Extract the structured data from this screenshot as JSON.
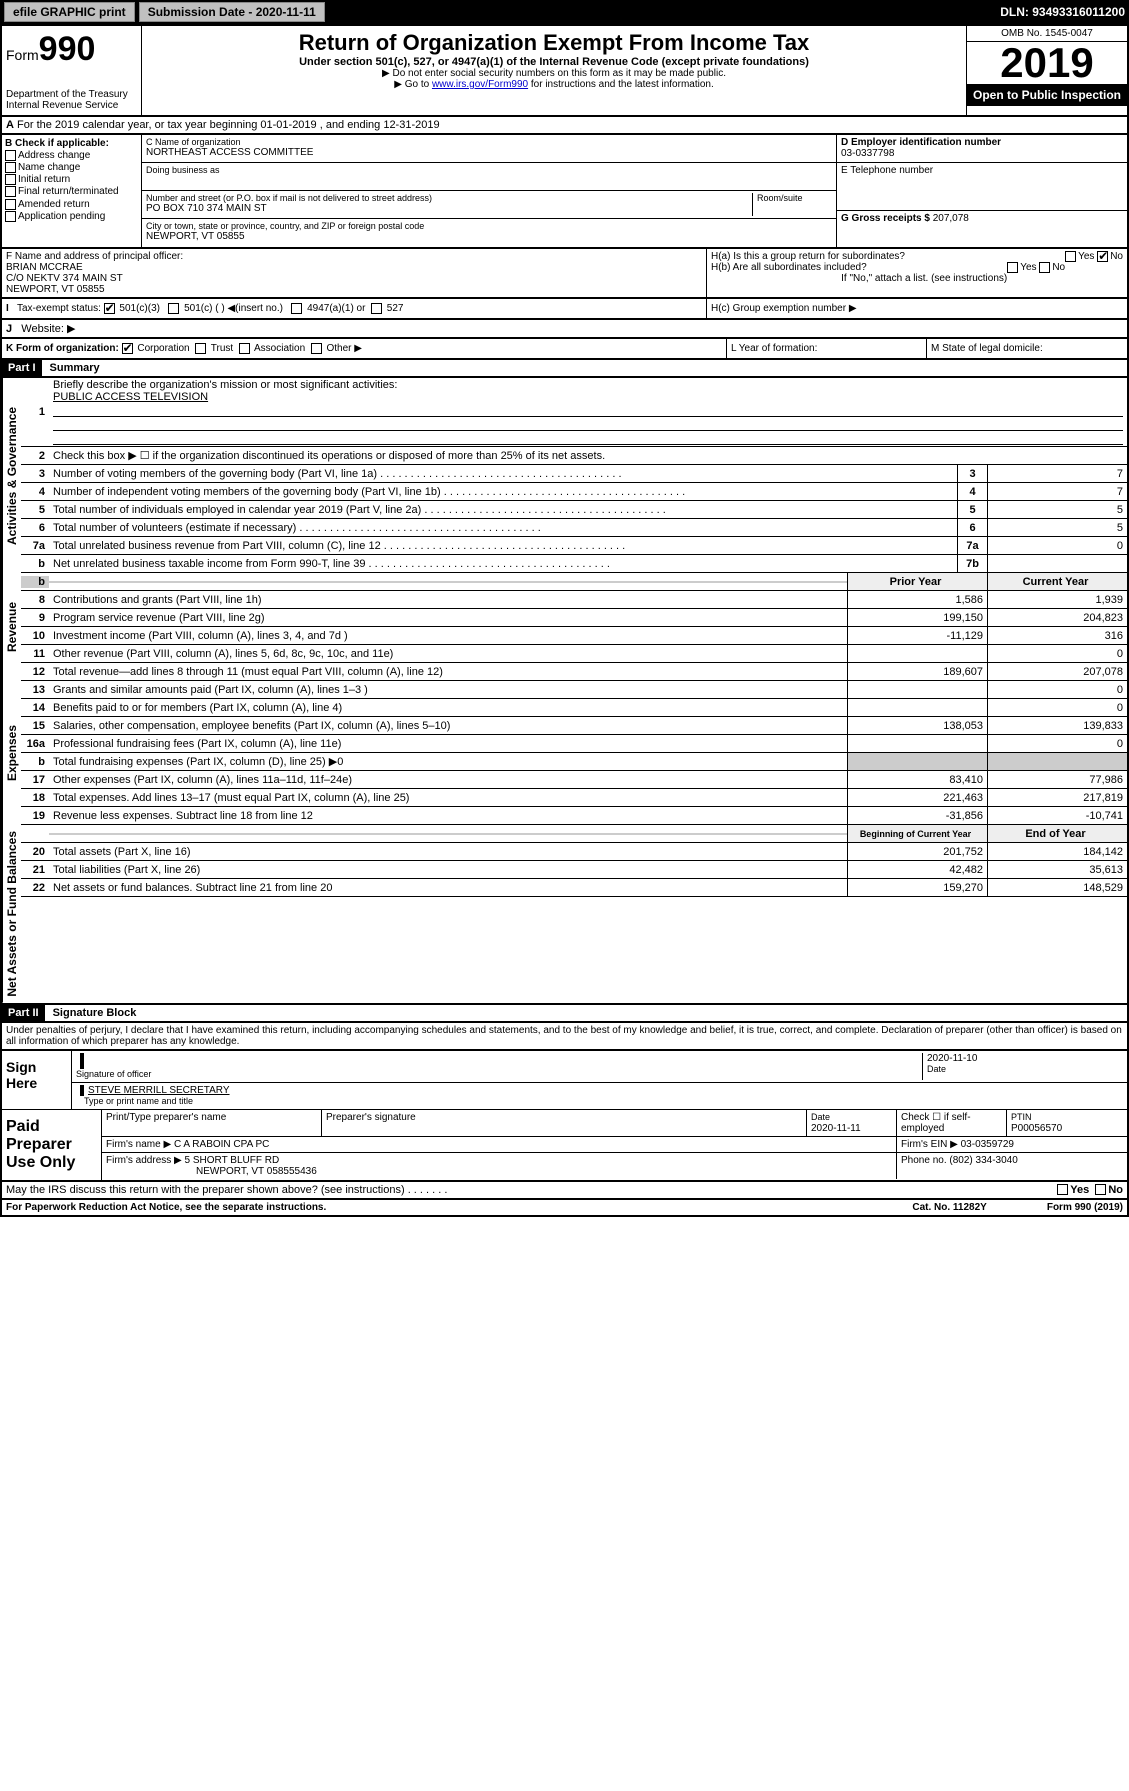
{
  "topbar": {
    "efile": "efile GRAPHIC print",
    "sub_label": "Submission Date - 2020-11-11",
    "dln": "DLN: 93493316011200"
  },
  "header": {
    "form_prefix": "Form",
    "form_num": "990",
    "dept": "Department of the Treasury\nInternal Revenue Service",
    "title": "Return of Organization Exempt From Income Tax",
    "subtitle": "Under section 501(c), 527, or 4947(a)(1) of the Internal Revenue Code (except private foundations)",
    "note1": "▶ Do not enter social security numbers on this form as it may be made public.",
    "note2_pre": "▶ Go to ",
    "note2_link": "www.irs.gov/Form990",
    "note2_post": " for instructions and the latest information.",
    "omb": "OMB No. 1545-0047",
    "year": "2019",
    "inspect": "Open to Public Inspection"
  },
  "lineA": "For the 2019 calendar year, or tax year beginning 01-01-2019   , and ending 12-31-2019",
  "boxB": {
    "label": "B Check if applicable:",
    "items": [
      "Address change",
      "Name change",
      "Initial return",
      "Final return/terminated",
      "Amended return",
      "Application pending"
    ]
  },
  "boxC": {
    "name_label": "C Name of organization",
    "name": "NORTHEAST ACCESS COMMITTEE",
    "dba_label": "Doing business as",
    "addr_label": "Number and street (or P.O. box if mail is not delivered to street address)",
    "room_label": "Room/suite",
    "addr": "PO BOX 710 374 MAIN ST",
    "city_label": "City or town, state or province, country, and ZIP or foreign postal code",
    "city": "NEWPORT, VT  05855"
  },
  "boxD": {
    "label": "D Employer identification number",
    "val": "03-0337798"
  },
  "boxE": {
    "label": "E Telephone number",
    "val": ""
  },
  "boxG": {
    "label": "G Gross receipts $",
    "val": "207,078"
  },
  "boxF": {
    "label": "F  Name and address of principal officer:",
    "lines": [
      "BRIAN MCCRAE",
      "C/O NEKTV 374 MAIN ST",
      "NEWPORT, VT  05855"
    ]
  },
  "boxH": {
    "a": "H(a)  Is this a group return for subordinates?",
    "b": "H(b)  Are all subordinates included?",
    "note": "If \"No,\" attach a list. (see instructions)",
    "c": "H(c)  Group exemption number ▶"
  },
  "boxI": {
    "label": "Tax-exempt status:",
    "opts": [
      "501(c)(3)",
      "501(c) (   ) ◀(insert no.)",
      "4947(a)(1) or",
      "527"
    ]
  },
  "boxJ": "Website: ▶",
  "boxK": "K Form of organization:",
  "boxK_opts": [
    "Corporation",
    "Trust",
    "Association",
    "Other ▶"
  ],
  "boxL": "L Year of formation:",
  "boxM": "M State of legal domicile:",
  "part1": {
    "bar": "Part I",
    "title": "Summary"
  },
  "summary": {
    "q1": "Briefly describe the organization's mission or most significant activities:",
    "q1_ans": "PUBLIC ACCESS TELEVISION",
    "q2": "Check this box ▶ ☐  if the organization discontinued its operations or disposed of more than 25% of its net assets.",
    "lines": [
      {
        "n": "3",
        "t": "Number of voting members of the governing body (Part VI, line 1a)",
        "box": "3",
        "v": "7"
      },
      {
        "n": "4",
        "t": "Number of independent voting members of the governing body (Part VI, line 1b)",
        "box": "4",
        "v": "7"
      },
      {
        "n": "5",
        "t": "Total number of individuals employed in calendar year 2019 (Part V, line 2a)",
        "box": "5",
        "v": "5"
      },
      {
        "n": "6",
        "t": "Total number of volunteers (estimate if necessary)",
        "box": "6",
        "v": "5"
      },
      {
        "n": "7a",
        "t": "Total unrelated business revenue from Part VIII, column (C), line 12",
        "box": "7a",
        "v": "0"
      },
      {
        "n": "b",
        "t": "Net unrelated business taxable income from Form 990-T, line 39",
        "box": "7b",
        "v": ""
      }
    ],
    "col_prior": "Prior Year",
    "col_curr": "Current Year",
    "rev": [
      {
        "n": "8",
        "t": "Contributions and grants (Part VIII, line 1h)",
        "p": "1,586",
        "c": "1,939"
      },
      {
        "n": "9",
        "t": "Program service revenue (Part VIII, line 2g)",
        "p": "199,150",
        "c": "204,823"
      },
      {
        "n": "10",
        "t": "Investment income (Part VIII, column (A), lines 3, 4, and 7d )",
        "p": "-11,129",
        "c": "316"
      },
      {
        "n": "11",
        "t": "Other revenue (Part VIII, column (A), lines 5, 6d, 8c, 9c, 10c, and 11e)",
        "p": "",
        "c": "0"
      },
      {
        "n": "12",
        "t": "Total revenue—add lines 8 through 11 (must equal Part VIII, column (A), line 12)",
        "p": "189,607",
        "c": "207,078"
      }
    ],
    "exp": [
      {
        "n": "13",
        "t": "Grants and similar amounts paid (Part IX, column (A), lines 1–3 )",
        "p": "",
        "c": "0"
      },
      {
        "n": "14",
        "t": "Benefits paid to or for members (Part IX, column (A), line 4)",
        "p": "",
        "c": "0"
      },
      {
        "n": "15",
        "t": "Salaries, other compensation, employee benefits (Part IX, column (A), lines 5–10)",
        "p": "138,053",
        "c": "139,833"
      },
      {
        "n": "16a",
        "t": "Professional fundraising fees (Part IX, column (A), line 11e)",
        "p": "",
        "c": "0"
      },
      {
        "n": "b",
        "t": "Total fundraising expenses (Part IX, column (D), line 25) ▶0",
        "p": "",
        "c": "",
        "shade": true
      },
      {
        "n": "17",
        "t": "Other expenses (Part IX, column (A), lines 11a–11d, 11f–24e)",
        "p": "83,410",
        "c": "77,986"
      },
      {
        "n": "18",
        "t": "Total expenses. Add lines 13–17 (must equal Part IX, column (A), line 25)",
        "p": "221,463",
        "c": "217,819"
      },
      {
        "n": "19",
        "t": "Revenue less expenses. Subtract line 18 from line 12",
        "p": "-31,856",
        "c": "-10,741"
      }
    ],
    "col_beg": "Beginning of Current Year",
    "col_end": "End of Year",
    "net": [
      {
        "n": "20",
        "t": "Total assets (Part X, line 16)",
        "p": "201,752",
        "c": "184,142"
      },
      {
        "n": "21",
        "t": "Total liabilities (Part X, line 26)",
        "p": "42,482",
        "c": "35,613"
      },
      {
        "n": "22",
        "t": "Net assets or fund balances. Subtract line 21 from line 20",
        "p": "159,270",
        "c": "148,529"
      }
    ],
    "vlabels": [
      "Activities & Governance",
      "Revenue",
      "Expenses",
      "Net Assets or Fund Balances"
    ]
  },
  "part2": {
    "bar": "Part II",
    "title": "Signature Block"
  },
  "perjury": "Under penalties of perjury, I declare that I have examined this return, including accompanying schedules and statements, and to the best of my knowledge and belief, it is true, correct, and complete. Declaration of preparer (other than officer) is based on all information of which preparer has any knowledge.",
  "sign": {
    "here": "Sign Here",
    "sig_label": "Signature of officer",
    "date": "2020-11-10",
    "date_label": "Date",
    "name": "STEVE MERRILL SECRETARY",
    "name_label": "Type or print name and title"
  },
  "paid": {
    "label": "Paid Preparer Use Only",
    "h1": "Print/Type preparer's name",
    "h2": "Preparer's signature",
    "h3_label": "Date",
    "h3": "2020-11-11",
    "h4": "Check ☐ if self-employed",
    "h5_label": "PTIN",
    "h5": "P00056570",
    "firm_label": "Firm's name    ▶",
    "firm": "C A RABOIN CPA PC",
    "ein_label": "Firm's EIN ▶",
    "ein": "03-0359729",
    "addr_label": "Firm's address ▶",
    "addr": "5 SHORT BLUFF RD",
    "addr2": "NEWPORT, VT  058555436",
    "phone_label": "Phone no.",
    "phone": "(802) 334-3040"
  },
  "discuss": "May the IRS discuss this return with the preparer shown above? (see instructions)",
  "foot": {
    "left": "For Paperwork Reduction Act Notice, see the separate instructions.",
    "mid": "Cat. No. 11282Y",
    "right": "Form 990 (2019)"
  }
}
